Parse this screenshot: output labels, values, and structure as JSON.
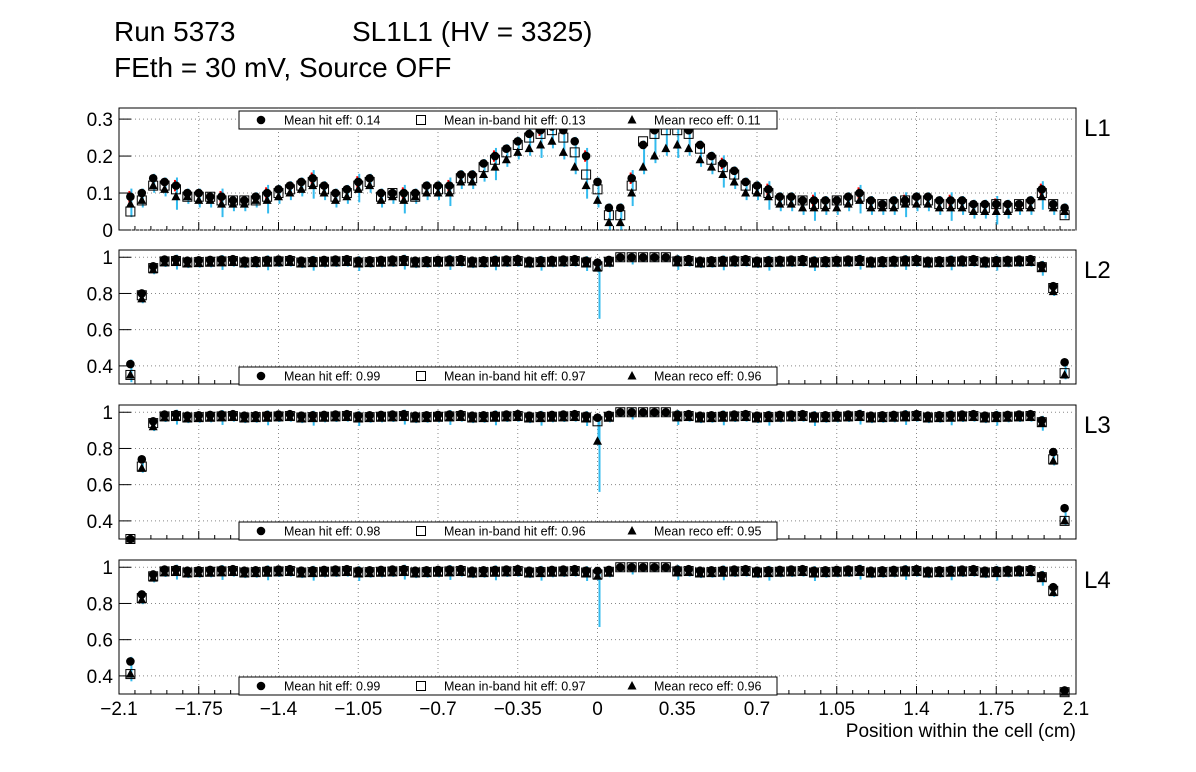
{
  "title": {
    "run": "Run 5373",
    "sl": "SL1L1 (HV = 3325)",
    "line2": "FEth = 30 mV, Source OFF"
  },
  "colors": {
    "hit": "#000000",
    "inband": "#000000",
    "reco": "#000000",
    "err_hit": "#ff0000",
    "err_reco": "#33bbee",
    "grid": "#888888"
  },
  "chart_data": {
    "type": "scatter",
    "xlabel": "Position within the cell (cm)",
    "xlim": [
      -2.1,
      2.1
    ],
    "xticks": [
      "−2.1",
      "−1.75",
      "−1.4",
      "−1.05",
      "−0.7",
      "−0.35",
      "0",
      "0.35",
      "0.7",
      "1.05",
      "1.4",
      "1.75",
      "2.1"
    ],
    "panels": [
      {
        "name": "L1",
        "label": "L1",
        "ylim": [
          0,
          0.33
        ],
        "yticks": [
          0,
          0.1,
          0.2,
          0.3
        ],
        "ytick_labels": [
          "0",
          "0.1",
          "0.2",
          "0.3"
        ],
        "legend": {
          "position": "top",
          "hit": "Mean hit  eff: 0.14",
          "inband": "Mean in-band hit eff: 0.13",
          "reco": "Mean reco eff: 0.11"
        },
        "x": [
          -2.05,
          -2.0,
          -1.95,
          -1.9,
          -1.85,
          -1.8,
          -1.75,
          -1.7,
          -1.65,
          -1.6,
          -1.55,
          -1.5,
          -1.45,
          -1.4,
          -1.35,
          -1.3,
          -1.25,
          -1.2,
          -1.15,
          -1.1,
          -1.05,
          -1.0,
          -0.95,
          -0.9,
          -0.85,
          -0.8,
          -0.75,
          -0.7,
          -0.65,
          -0.6,
          -0.55,
          -0.5,
          -0.45,
          -0.4,
          -0.35,
          -0.3,
          -0.25,
          -0.2,
          -0.15,
          -0.1,
          -0.05,
          0.0,
          0.05,
          0.1,
          0.15,
          0.2,
          0.25,
          0.3,
          0.35,
          0.4,
          0.45,
          0.5,
          0.55,
          0.6,
          0.65,
          0.7,
          0.75,
          0.8,
          0.85,
          0.9,
          0.95,
          1.0,
          1.05,
          1.1,
          1.15,
          1.2,
          1.25,
          1.3,
          1.35,
          1.4,
          1.45,
          1.5,
          1.55,
          1.6,
          1.65,
          1.7,
          1.75,
          1.8,
          1.85,
          1.9,
          1.95,
          2.0,
          2.05
        ],
        "hit": [
          0.09,
          0.1,
          0.14,
          0.13,
          0.12,
          0.1,
          0.1,
          0.09,
          0.09,
          0.08,
          0.08,
          0.09,
          0.1,
          0.11,
          0.12,
          0.13,
          0.14,
          0.12,
          0.1,
          0.11,
          0.13,
          0.14,
          0.1,
          0.1,
          0.1,
          0.1,
          0.12,
          0.12,
          0.12,
          0.15,
          0.15,
          0.18,
          0.2,
          0.22,
          0.24,
          0.26,
          0.27,
          0.28,
          0.27,
          0.24,
          0.2,
          0.13,
          0.06,
          0.06,
          0.14,
          0.23,
          0.27,
          0.29,
          0.29,
          0.27,
          0.23,
          0.2,
          0.18,
          0.16,
          0.13,
          0.12,
          0.11,
          0.09,
          0.09,
          0.08,
          0.08,
          0.08,
          0.08,
          0.09,
          0.1,
          0.08,
          0.07,
          0.08,
          0.08,
          0.09,
          0.09,
          0.08,
          0.08,
          0.08,
          0.07,
          0.07,
          0.07,
          0.07,
          0.07,
          0.08,
          0.11,
          0.07,
          0.06
        ],
        "inband": [
          0.05,
          0.08,
          0.12,
          0.12,
          0.11,
          0.09,
          0.09,
          0.09,
          0.08,
          0.08,
          0.08,
          0.08,
          0.09,
          0.1,
          0.11,
          0.12,
          0.13,
          0.11,
          0.09,
          0.1,
          0.12,
          0.13,
          0.09,
          0.1,
          0.09,
          0.09,
          0.11,
          0.11,
          0.11,
          0.14,
          0.14,
          0.17,
          0.19,
          0.21,
          0.23,
          0.25,
          0.26,
          0.27,
          0.25,
          0.21,
          0.15,
          0.11,
          0.04,
          0.04,
          0.12,
          0.24,
          0.26,
          0.27,
          0.27,
          0.26,
          0.22,
          0.19,
          0.17,
          0.15,
          0.12,
          0.11,
          0.1,
          0.08,
          0.08,
          0.08,
          0.07,
          0.07,
          0.08,
          0.08,
          0.09,
          0.07,
          0.07,
          0.07,
          0.08,
          0.08,
          0.08,
          0.07,
          0.07,
          0.07,
          0.06,
          0.06,
          0.07,
          0.06,
          0.07,
          0.07,
          0.1,
          0.07,
          0.04
        ],
        "reco": [
          0.07,
          0.08,
          0.12,
          0.11,
          0.09,
          0.09,
          0.08,
          0.08,
          0.07,
          0.07,
          0.07,
          0.08,
          0.08,
          0.09,
          0.1,
          0.11,
          0.12,
          0.1,
          0.08,
          0.09,
          0.11,
          0.12,
          0.08,
          0.09,
          0.08,
          0.09,
          0.1,
          0.1,
          0.1,
          0.13,
          0.13,
          0.15,
          0.17,
          0.19,
          0.21,
          0.22,
          0.23,
          0.24,
          0.21,
          0.17,
          0.12,
          0.08,
          0.02,
          0.02,
          0.1,
          0.17,
          0.2,
          0.22,
          0.23,
          0.22,
          0.19,
          0.17,
          0.15,
          0.13,
          0.1,
          0.1,
          0.09,
          0.07,
          0.07,
          0.06,
          0.06,
          0.06,
          0.06,
          0.07,
          0.08,
          0.06,
          0.06,
          0.06,
          0.07,
          0.07,
          0.07,
          0.06,
          0.06,
          0.06,
          0.05,
          0.05,
          0.05,
          0.05,
          0.06,
          0.06,
          0.09,
          0.06,
          0.05
        ]
      },
      {
        "name": "L2",
        "label": "L2",
        "ylim": [
          0.3,
          1.04
        ],
        "yticks": [
          0.4,
          0.6,
          0.8,
          1.0
        ],
        "ytick_labels": [
          "0.4",
          "0.6",
          "0.8",
          "1"
        ],
        "legend": {
          "position": "bottom",
          "hit": "Mean hit  eff: 0.99",
          "inband": "Mean in-band hit eff: 0.97",
          "reco": "Mean reco eff: 0.96"
        },
        "edges": {
          "hit": [
            0.41,
            0.8,
            0.95,
            0.42
          ],
          "inband": [
            0.35,
            0.79,
            0.94,
            0.36
          ],
          "reco": [
            0.35,
            0.77,
            0.93,
            0.35
          ]
        },
        "dips": {
          "hit": 0.97,
          "inband": 0.95,
          "reco": 0.94
        }
      },
      {
        "name": "L3",
        "label": "L3",
        "ylim": [
          0.3,
          1.04
        ],
        "yticks": [
          0.4,
          0.6,
          0.8,
          1.0
        ],
        "ytick_labels": [
          "0.4",
          "0.6",
          "0.8",
          "1"
        ],
        "legend": {
          "position": "bottom",
          "hit": "Mean hit  eff: 0.98",
          "inband": "Mean in-band hit eff: 0.96",
          "reco": "Mean reco eff: 0.95"
        },
        "edges": {
          "hit": [
            0.29,
            0.74,
            0.95,
            0.47
          ],
          "inband": [
            0.28,
            0.7,
            0.94,
            0.4
          ],
          "reco": [
            0.28,
            0.69,
            0.92,
            0.4
          ]
        },
        "dips": {
          "hit": 0.97,
          "inband": 0.95,
          "reco": 0.84
        }
      },
      {
        "name": "L4",
        "label": "L4",
        "ylim": [
          0.3,
          1.04
        ],
        "yticks": [
          0.4,
          0.6,
          0.8,
          1.0
        ],
        "ytick_labels": [
          "0.4",
          "0.6",
          "0.8",
          "1"
        ],
        "legend": {
          "position": "bottom",
          "hit": "Mean hit  eff: 0.99",
          "inband": "Mean in-band hit eff: 0.97",
          "reco": "Mean reco eff: 0.96"
        },
        "edges": {
          "hit": [
            0.48,
            0.85,
            0.96,
            0.32
          ],
          "inband": [
            0.41,
            0.83,
            0.95,
            0.31
          ],
          "reco": [
            0.41,
            0.82,
            0.94,
            0.31
          ]
        },
        "dips": {
          "hit": 0.98,
          "inband": 0.96,
          "reco": 0.95
        }
      }
    ]
  }
}
